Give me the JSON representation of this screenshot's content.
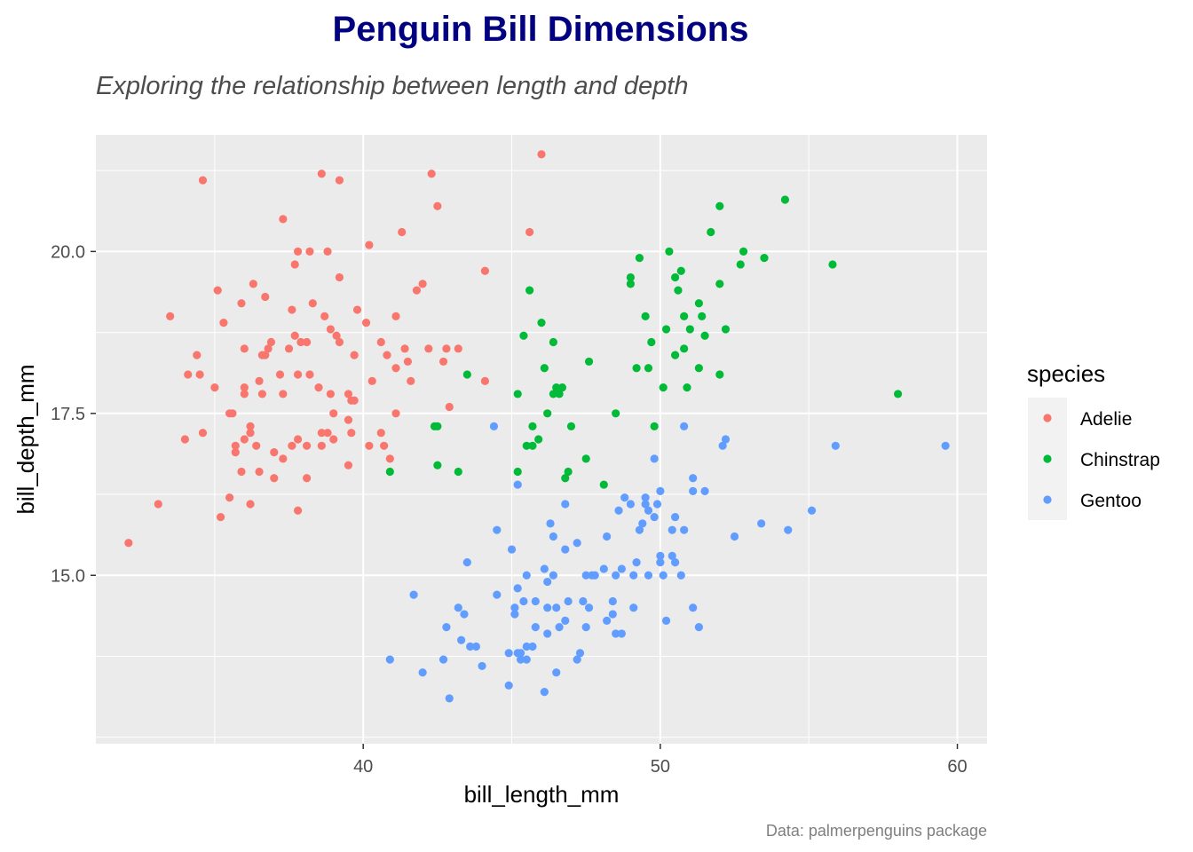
{
  "chart_data": {
    "type": "scatter",
    "title": "Penguin Bill Dimensions",
    "subtitle": "Exploring the relationship between length and depth",
    "xlabel": "bill_length_mm",
    "ylabel": "bill_depth_mm",
    "caption": "Data: palmerpenguins package",
    "xlim": [
      31.0,
      61.0
    ],
    "ylim": [
      12.4,
      21.8
    ],
    "x_ticks": [
      40,
      50,
      60
    ],
    "x_tick_labels": [
      "40",
      "50",
      "60"
    ],
    "y_ticks": [
      15.0,
      17.5,
      20.0
    ],
    "y_tick_labels": [
      "15.0",
      "17.5",
      "20.0"
    ],
    "grid": true,
    "legend": {
      "title": "species",
      "position": "right"
    },
    "series": [
      {
        "name": "Adelie",
        "color": "#F8766D",
        "points": [
          [
            32.1,
            15.5
          ],
          [
            33.1,
            16.1
          ],
          [
            33.5,
            19.0
          ],
          [
            34.0,
            17.1
          ],
          [
            34.1,
            18.1
          ],
          [
            34.4,
            18.4
          ],
          [
            34.5,
            18.1
          ],
          [
            34.6,
            17.2
          ],
          [
            34.6,
            21.1
          ],
          [
            35.0,
            17.9
          ],
          [
            35.1,
            19.4
          ],
          [
            35.2,
            15.9
          ],
          [
            35.3,
            18.9
          ],
          [
            35.5,
            16.2
          ],
          [
            35.5,
            17.5
          ],
          [
            35.6,
            17.5
          ],
          [
            35.7,
            16.9
          ],
          [
            35.7,
            17.0
          ],
          [
            35.9,
            16.6
          ],
          [
            35.9,
            19.2
          ],
          [
            36.0,
            17.1
          ],
          [
            36.0,
            17.8
          ],
          [
            36.0,
            17.9
          ],
          [
            36.0,
            18.5
          ],
          [
            36.2,
            16.1
          ],
          [
            36.2,
            17.2
          ],
          [
            36.2,
            17.3
          ],
          [
            36.3,
            19.5
          ],
          [
            36.4,
            17.0
          ],
          [
            36.5,
            16.6
          ],
          [
            36.5,
            18.0
          ],
          [
            36.6,
            17.8
          ],
          [
            36.6,
            18.4
          ],
          [
            36.7,
            18.4
          ],
          [
            36.7,
            19.3
          ],
          [
            36.8,
            18.5
          ],
          [
            36.9,
            18.6
          ],
          [
            37.0,
            16.5
          ],
          [
            37.0,
            16.9
          ],
          [
            37.2,
            18.1
          ],
          [
            37.3,
            16.8
          ],
          [
            37.3,
            17.8
          ],
          [
            37.3,
            20.5
          ],
          [
            37.5,
            18.5
          ],
          [
            37.6,
            17.0
          ],
          [
            37.6,
            19.1
          ],
          [
            37.7,
            18.7
          ],
          [
            37.7,
            19.8
          ],
          [
            37.8,
            16.0
          ],
          [
            37.8,
            17.1
          ],
          [
            37.8,
            18.1
          ],
          [
            37.8,
            20.0
          ],
          [
            37.9,
            18.6
          ],
          [
            38.1,
            16.5
          ],
          [
            38.1,
            17.0
          ],
          [
            38.1,
            18.6
          ],
          [
            38.2,
            18.1
          ],
          [
            38.2,
            20.0
          ],
          [
            38.3,
            19.2
          ],
          [
            38.5,
            17.9
          ],
          [
            38.6,
            17.0
          ],
          [
            38.6,
            17.2
          ],
          [
            38.6,
            21.2
          ],
          [
            38.7,
            19.0
          ],
          [
            38.8,
            17.2
          ],
          [
            38.8,
            20.0
          ],
          [
            38.9,
            17.8
          ],
          [
            38.9,
            18.8
          ],
          [
            39.0,
            17.1
          ],
          [
            39.0,
            17.5
          ],
          [
            39.1,
            18.7
          ],
          [
            39.2,
            18.6
          ],
          [
            39.2,
            19.6
          ],
          [
            39.2,
            21.1
          ],
          [
            39.5,
            16.7
          ],
          [
            39.5,
            17.4
          ],
          [
            39.5,
            17.8
          ],
          [
            39.6,
            17.2
          ],
          [
            39.6,
            17.7
          ],
          [
            39.7,
            17.7
          ],
          [
            39.7,
            18.4
          ],
          [
            39.8,
            19.1
          ],
          [
            40.1,
            18.9
          ],
          [
            40.2,
            17.0
          ],
          [
            40.2,
            20.1
          ],
          [
            40.3,
            18.0
          ],
          [
            40.6,
            17.2
          ],
          [
            40.6,
            18.6
          ],
          [
            40.7,
            17.0
          ],
          [
            40.8,
            18.4
          ],
          [
            40.9,
            16.8
          ],
          [
            41.1,
            17.5
          ],
          [
            41.1,
            18.2
          ],
          [
            41.1,
            19.0
          ],
          [
            41.3,
            20.3
          ],
          [
            41.4,
            18.5
          ],
          [
            41.5,
            18.3
          ],
          [
            41.6,
            18.0
          ],
          [
            41.8,
            19.4
          ],
          [
            42.0,
            19.5
          ],
          [
            42.2,
            18.5
          ],
          [
            42.3,
            21.2
          ],
          [
            42.5,
            20.7
          ],
          [
            42.7,
            18.3
          ],
          [
            42.8,
            18.5
          ],
          [
            42.9,
            17.6
          ],
          [
            43.2,
            18.5
          ],
          [
            44.1,
            18.0
          ],
          [
            44.1,
            19.7
          ],
          [
            45.6,
            20.3
          ],
          [
            46.0,
            21.5
          ]
        ]
      },
      {
        "name": "Chinstrap",
        "color": "#00BA38",
        "points": [
          [
            40.9,
            16.6
          ],
          [
            42.4,
            17.3
          ],
          [
            42.5,
            17.3
          ],
          [
            42.5,
            16.7
          ],
          [
            43.2,
            16.6
          ],
          [
            43.5,
            18.1
          ],
          [
            45.2,
            17.8
          ],
          [
            45.2,
            16.6
          ],
          [
            45.4,
            18.7
          ],
          [
            45.5,
            17.0
          ],
          [
            45.6,
            19.4
          ],
          [
            45.7,
            17.3
          ],
          [
            45.7,
            17.0
          ],
          [
            45.9,
            17.1
          ],
          [
            46.0,
            18.9
          ],
          [
            46.1,
            18.2
          ],
          [
            46.2,
            17.5
          ],
          [
            46.4,
            18.6
          ],
          [
            46.4,
            17.8
          ],
          [
            46.5,
            17.9
          ],
          [
            46.6,
            17.8
          ],
          [
            46.7,
            17.9
          ],
          [
            46.8,
            16.5
          ],
          [
            46.9,
            16.6
          ],
          [
            47.0,
            17.3
          ],
          [
            47.5,
            16.8
          ],
          [
            47.6,
            18.3
          ],
          [
            48.1,
            16.4
          ],
          [
            48.5,
            17.5
          ],
          [
            49.0,
            19.5
          ],
          [
            49.0,
            19.6
          ],
          [
            49.2,
            18.2
          ],
          [
            49.3,
            19.9
          ],
          [
            49.5,
            19.0
          ],
          [
            49.6,
            18.2
          ],
          [
            49.7,
            18.6
          ],
          [
            49.8,
            17.3
          ],
          [
            50.1,
            17.9
          ],
          [
            50.2,
            18.8
          ],
          [
            50.3,
            20.0
          ],
          [
            50.5,
            19.6
          ],
          [
            50.5,
            18.4
          ],
          [
            50.6,
            19.4
          ],
          [
            50.7,
            19.7
          ],
          [
            50.8,
            18.5
          ],
          [
            50.8,
            19.0
          ],
          [
            50.9,
            17.9
          ],
          [
            51.0,
            18.8
          ],
          [
            51.3,
            19.2
          ],
          [
            51.3,
            18.2
          ],
          [
            51.4,
            19.0
          ],
          [
            51.5,
            18.7
          ],
          [
            51.7,
            20.3
          ],
          [
            52.0,
            19.5
          ],
          [
            52.0,
            20.7
          ],
          [
            52.0,
            18.1
          ],
          [
            52.2,
            18.8
          ],
          [
            52.7,
            19.8
          ],
          [
            52.8,
            20.0
          ],
          [
            53.5,
            19.9
          ],
          [
            54.2,
            20.8
          ],
          [
            55.8,
            19.8
          ],
          [
            58.0,
            17.8
          ]
        ]
      },
      {
        "name": "Gentoo",
        "color": "#619CFF",
        "points": [
          [
            40.9,
            13.7
          ],
          [
            41.7,
            14.7
          ],
          [
            42.0,
            13.5
          ],
          [
            42.7,
            13.7
          ],
          [
            42.8,
            14.2
          ],
          [
            42.9,
            13.1
          ],
          [
            43.2,
            14.5
          ],
          [
            43.3,
            14.0
          ],
          [
            43.4,
            14.4
          ],
          [
            43.5,
            15.2
          ],
          [
            43.6,
            13.9
          ],
          [
            43.8,
            13.9
          ],
          [
            44.0,
            13.6
          ],
          [
            44.4,
            17.3
          ],
          [
            44.5,
            14.7
          ],
          [
            44.5,
            15.7
          ],
          [
            44.9,
            13.8
          ],
          [
            44.9,
            13.3
          ],
          [
            45.0,
            15.4
          ],
          [
            45.1,
            14.5
          ],
          [
            45.1,
            14.4
          ],
          [
            45.2,
            16.4
          ],
          [
            45.2,
            14.8
          ],
          [
            45.2,
            13.8
          ],
          [
            45.3,
            13.7
          ],
          [
            45.3,
            13.8
          ],
          [
            45.4,
            14.6
          ],
          [
            45.5,
            13.7
          ],
          [
            45.5,
            13.9
          ],
          [
            45.5,
            15.0
          ],
          [
            45.7,
            13.9
          ],
          [
            45.8,
            14.6
          ],
          [
            45.8,
            14.2
          ],
          [
            46.1,
            13.2
          ],
          [
            46.1,
            15.1
          ],
          [
            46.2,
            14.5
          ],
          [
            46.2,
            14.9
          ],
          [
            46.2,
            14.1
          ],
          [
            46.3,
            15.8
          ],
          [
            46.4,
            15.0
          ],
          [
            46.4,
            15.6
          ],
          [
            46.5,
            14.5
          ],
          [
            46.5,
            13.5
          ],
          [
            46.6,
            14.2
          ],
          [
            46.8,
            14.3
          ],
          [
            46.8,
            15.4
          ],
          [
            46.8,
            16.1
          ],
          [
            46.9,
            14.6
          ],
          [
            47.2,
            13.7
          ],
          [
            47.2,
            15.5
          ],
          [
            47.3,
            13.8
          ],
          [
            47.4,
            14.6
          ],
          [
            47.5,
            14.2
          ],
          [
            47.5,
            15.0
          ],
          [
            47.6,
            14.5
          ],
          [
            47.7,
            15.0
          ],
          [
            47.8,
            15.0
          ],
          [
            48.1,
            15.1
          ],
          [
            48.2,
            14.3
          ],
          [
            48.2,
            15.6
          ],
          [
            48.4,
            14.4
          ],
          [
            48.4,
            14.6
          ],
          [
            48.5,
            14.1
          ],
          [
            48.5,
            15.0
          ],
          [
            48.6,
            16.0
          ],
          [
            48.7,
            14.1
          ],
          [
            48.7,
            15.1
          ],
          [
            48.8,
            16.2
          ],
          [
            49.0,
            16.1
          ],
          [
            49.1,
            14.5
          ],
          [
            49.1,
            15.0
          ],
          [
            49.2,
            15.2
          ],
          [
            49.3,
            15.7
          ],
          [
            49.4,
            15.8
          ],
          [
            49.5,
            16.1
          ],
          [
            49.5,
            16.2
          ],
          [
            49.6,
            15.0
          ],
          [
            49.6,
            16.0
          ],
          [
            49.8,
            15.9
          ],
          [
            49.8,
            16.8
          ],
          [
            49.9,
            16.1
          ],
          [
            50.0,
            15.2
          ],
          [
            50.0,
            15.3
          ],
          [
            50.0,
            16.3
          ],
          [
            50.1,
            15.0
          ],
          [
            50.2,
            14.3
          ],
          [
            50.4,
            15.3
          ],
          [
            50.4,
            15.7
          ],
          [
            50.5,
            15.2
          ],
          [
            50.5,
            15.9
          ],
          [
            50.7,
            15.0
          ],
          [
            50.8,
            15.7
          ],
          [
            50.8,
            17.3
          ],
          [
            51.1,
            14.5
          ],
          [
            51.1,
            16.3
          ],
          [
            51.1,
            16.5
          ],
          [
            51.3,
            14.2
          ],
          [
            51.5,
            16.3
          ],
          [
            52.1,
            17.0
          ],
          [
            52.2,
            17.1
          ],
          [
            52.5,
            15.6
          ],
          [
            53.4,
            15.8
          ],
          [
            54.3,
            15.7
          ],
          [
            55.1,
            16.0
          ],
          [
            55.9,
            17.0
          ],
          [
            59.6,
            17.0
          ]
        ]
      }
    ]
  }
}
